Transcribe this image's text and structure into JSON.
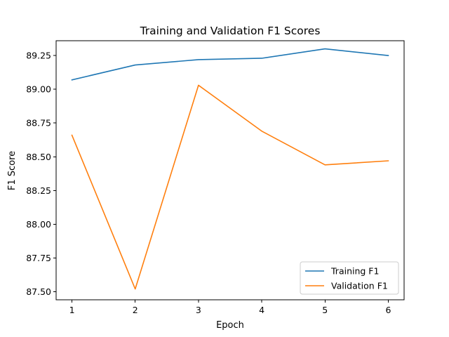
{
  "chart_data": {
    "type": "line",
    "title": "Training and Validation F1 Scores",
    "xlabel": "Epoch",
    "ylabel": "F1 Score",
    "x": [
      1,
      2,
      3,
      4,
      5,
      6
    ],
    "xlim": [
      0.75,
      6.25
    ],
    "ylim": [
      87.44,
      89.36
    ],
    "xticks": [
      1,
      2,
      3,
      4,
      5,
      6
    ],
    "yticks": [
      87.5,
      87.75,
      88.0,
      88.25,
      88.5,
      88.75,
      89.0,
      89.25
    ],
    "ytick_labels": [
      "87.50",
      "87.75",
      "88.00",
      "88.25",
      "88.50",
      "88.75",
      "89.00",
      "89.25"
    ],
    "grid": false,
    "legend_position": "lower right",
    "series": [
      {
        "name": "Training F1",
        "color": "#1f77b4",
        "values": [
          89.07,
          89.18,
          89.22,
          89.23,
          89.3,
          89.25
        ]
      },
      {
        "name": "Validation F1",
        "color": "#ff7f0e",
        "values": [
          88.66,
          87.52,
          89.03,
          88.69,
          88.44,
          88.47
        ]
      }
    ]
  }
}
